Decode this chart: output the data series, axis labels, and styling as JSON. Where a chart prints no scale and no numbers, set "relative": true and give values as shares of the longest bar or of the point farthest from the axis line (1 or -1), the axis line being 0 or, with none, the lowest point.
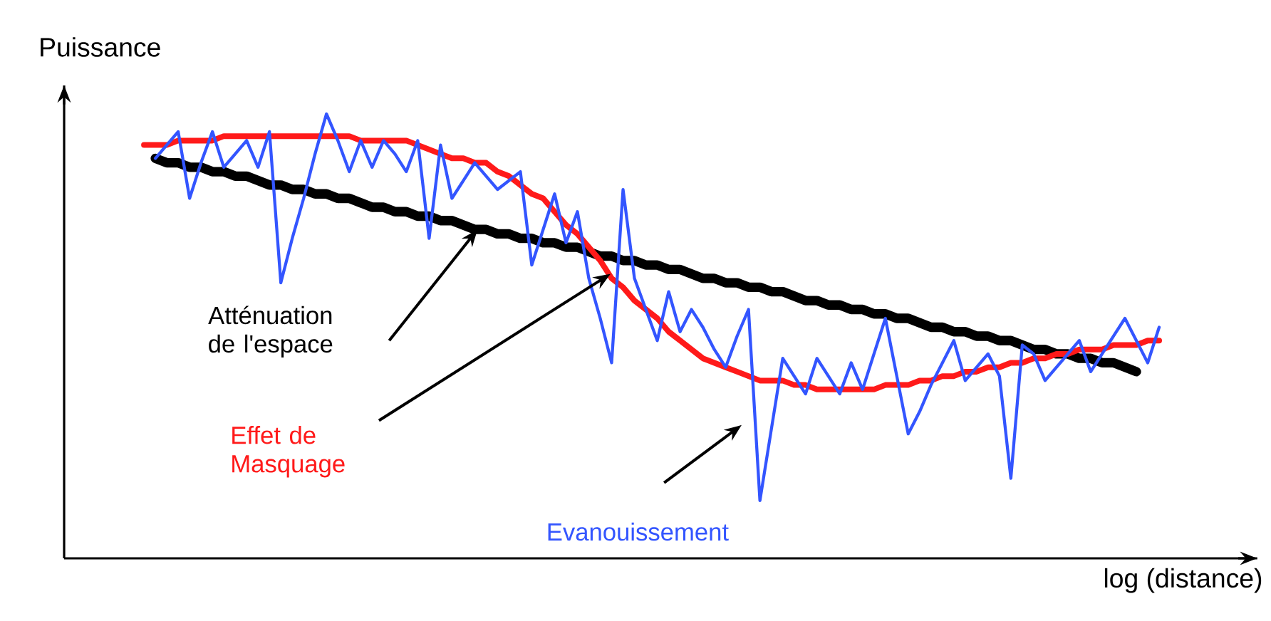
{
  "chart_data": {
    "type": "line",
    "relative": true,
    "xlabel": "log (distance)",
    "ylabel": "Puissance",
    "marker": "none",
    "line_style": "solid",
    "annotations": [
      "Atténuation de l'espace",
      "Effet de Masquage",
      "Evanouissement"
    ],
    "categories": [
      null,
      null,
      null,
      null,
      null,
      null,
      null,
      null,
      null,
      null,
      null,
      null,
      null,
      null,
      null,
      null,
      null,
      null,
      null,
      null,
      null,
      null,
      null,
      null,
      null,
      null,
      null,
      null,
      null,
      null,
      null,
      null,
      null,
      null,
      null,
      null,
      null,
      null,
      null,
      null,
      null,
      null,
      null,
      null,
      null,
      null,
      null,
      null,
      null,
      null,
      null,
      null,
      null,
      null,
      null,
      null,
      null,
      null,
      null,
      null,
      null,
      null,
      null,
      null,
      null,
      null,
      null,
      null,
      null,
      null,
      null,
      null,
      null,
      null,
      null,
      null,
      null,
      null,
      null,
      null,
      null,
      null,
      null,
      null,
      null,
      null,
      null,
      null,
      null,
      null
    ],
    "series": [
      {
        "color": "#000000",
        "values": [
          null,
          0.9,
          0.89,
          0.89,
          0.88,
          0.88,
          0.87,
          0.87,
          0.86,
          0.86,
          0.85,
          0.84,
          0.84,
          0.83,
          0.83,
          0.82,
          0.82,
          0.81,
          0.81,
          0.8,
          0.79,
          0.79,
          0.78,
          0.78,
          0.77,
          0.77,
          0.76,
          0.76,
          0.75,
          0.74,
          0.74,
          0.73,
          0.73,
          0.72,
          0.72,
          0.71,
          0.71,
          0.7,
          0.7,
          0.69,
          0.68,
          0.68,
          0.67,
          0.67,
          0.66,
          0.66,
          0.65,
          0.65,
          0.64,
          0.63,
          0.63,
          0.62,
          0.62,
          0.61,
          0.61,
          0.6,
          0.6,
          0.59,
          0.58,
          0.58,
          0.57,
          0.57,
          0.56,
          0.56,
          0.55,
          0.55,
          0.54,
          0.54,
          0.53,
          0.52,
          0.52,
          0.51,
          0.51,
          0.5,
          0.5,
          0.49,
          0.49,
          0.48,
          0.47,
          0.47,
          0.46,
          0.46,
          0.45,
          0.45,
          0.44,
          0.44,
          0.43,
          0.42,
          null,
          null
        ]
      },
      {
        "color": "#ff1a1a",
        "values": [
          0.93,
          0.93,
          0.93,
          0.94,
          0.94,
          0.94,
          0.94,
          0.95,
          0.95,
          0.95,
          0.95,
          0.95,
          0.95,
          0.95,
          0.95,
          0.95,
          0.95,
          0.95,
          0.95,
          0.94,
          0.94,
          0.94,
          0.94,
          0.94,
          0.93,
          0.92,
          0.91,
          0.9,
          0.9,
          0.89,
          0.89,
          0.87,
          0.86,
          0.84,
          0.82,
          0.81,
          0.78,
          0.75,
          0.73,
          0.7,
          0.67,
          0.63,
          0.61,
          0.58,
          0.56,
          0.54,
          0.51,
          0.49,
          0.47,
          0.45,
          0.44,
          0.43,
          0.42,
          0.41,
          0.4,
          0.4,
          0.4,
          0.39,
          0.39,
          0.38,
          0.38,
          0.38,
          0.38,
          0.38,
          0.38,
          0.39,
          0.39,
          0.39,
          0.4,
          0.4,
          0.41,
          0.41,
          0.42,
          0.42,
          0.43,
          0.43,
          0.44,
          0.44,
          0.45,
          0.45,
          0.46,
          0.46,
          0.47,
          0.47,
          0.47,
          0.48,
          0.48,
          0.48,
          0.49,
          0.49
        ]
      },
      {
        "color": "#3355ff",
        "values": [
          null,
          0.9,
          0.93,
          0.96,
          0.81,
          0.89,
          0.96,
          0.88,
          0.91,
          0.94,
          0.88,
          0.96,
          0.62,
          0.72,
          0.81,
          0.91,
          1.0,
          0.94,
          0.87,
          0.94,
          0.88,
          0.94,
          0.91,
          0.87,
          0.94,
          0.72,
          0.93,
          0.81,
          0.85,
          0.89,
          0.86,
          0.83,
          0.85,
          0.87,
          0.66,
          0.74,
          0.82,
          0.71,
          0.78,
          0.63,
          0.54,
          0.44,
          0.83,
          0.63,
          0.56,
          0.49,
          0.6,
          0.51,
          0.56,
          0.52,
          0.47,
          0.43,
          0.5,
          0.56,
          0.13,
          0.29,
          0.45,
          0.41,
          0.37,
          0.45,
          0.41,
          0.37,
          0.44,
          0.38,
          0.46,
          0.54,
          0.41,
          0.28,
          0.33,
          0.39,
          0.44,
          0.49,
          0.4,
          0.43,
          0.46,
          0.41,
          0.18,
          0.48,
          0.46,
          0.4,
          0.43,
          0.46,
          0.49,
          0.42,
          0.46,
          0.5,
          0.54,
          0.49,
          0.44,
          0.52
        ]
      }
    ]
  }
}
